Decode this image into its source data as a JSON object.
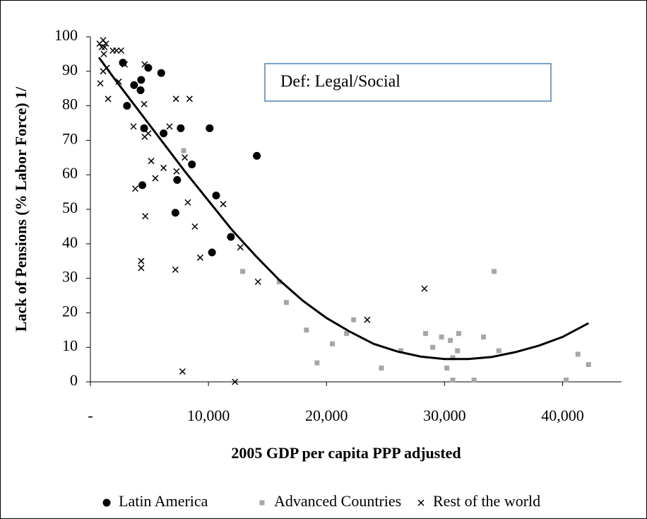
{
  "chart_data": {
    "type": "scatter",
    "annotation": "Def: Legal/Social",
    "x_label": "2005 GDP per capita PPP adjusted",
    "y_label": "Lack of Pensions (% Labor Force) 1/",
    "xlim": [
      0,
      45000
    ],
    "ylim": [
      0,
      100
    ],
    "xticks": [
      {
        "value": 0,
        "label": "-"
      },
      {
        "value": 10000,
        "label": "10,000"
      },
      {
        "value": 20000,
        "label": "20,000"
      },
      {
        "value": 30000,
        "label": "30,000"
      },
      {
        "value": 40000,
        "label": "40,000"
      }
    ],
    "yticks": [
      0,
      10,
      20,
      30,
      40,
      50,
      60,
      70,
      80,
      90,
      100
    ],
    "legend": "bottom",
    "series": [
      {
        "name": "Latin America",
        "color": "#000000",
        "marker": "circle",
        "x": [
          2750,
          3700,
          4250,
          4300,
          4900,
          6000,
          3100,
          4550,
          6200,
          7650,
          10100,
          14100,
          4400,
          7350,
          8600,
          7200,
          10650,
          10300,
          11900
        ],
        "values": [
          92.5,
          86,
          84.5,
          87.5,
          91,
          89.5,
          80,
          73.5,
          72,
          73.5,
          73.5,
          65.5,
          57,
          58.5,
          63,
          49,
          54,
          37.5,
          42
        ]
      },
      {
        "name": "Advanced Countries",
        "color": "#a6a6a6",
        "marker": "square",
        "x": [
          7900,
          12900,
          16000,
          16600,
          18300,
          19200,
          20500,
          21700,
          22300,
          24650,
          26300,
          28400,
          29000,
          29750,
          30200,
          30500,
          30700,
          30700,
          31100,
          31200,
          32500,
          33300,
          34200,
          34600,
          40300,
          41300,
          42200
        ],
        "values": [
          67,
          32,
          29,
          23,
          15,
          5.5,
          11,
          14,
          18,
          4,
          9,
          14,
          10,
          13,
          4,
          12,
          0.5,
          7,
          9,
          14,
          0.5,
          13,
          32,
          9,
          0.5,
          8,
          5
        ]
      },
      {
        "name": "Rest of the world",
        "color": "#000000",
        "marker": "cross",
        "x": [
          780,
          960,
          1080,
          1200,
          1320,
          840,
          1080,
          1380,
          1500,
          1900,
          2200,
          2400,
          2600,
          2900,
          1140,
          3650,
          3800,
          4550,
          4600,
          4600,
          4900,
          5150,
          5500,
          6200,
          6700,
          7250,
          7300,
          7200,
          4300,
          4300,
          4650,
          7800,
          8000,
          8250,
          8400,
          8850,
          9300,
          11250,
          12250,
          12700,
          14200,
          23450,
          28300
        ],
        "values": [
          98,
          97,
          99,
          97,
          98,
          86.5,
          90,
          91,
          82,
          96,
          96,
          87,
          96,
          92,
          95,
          74,
          56,
          80.5,
          71,
          92,
          72,
          64,
          59,
          62,
          74,
          82,
          61,
          32.5,
          35,
          33,
          48,
          3,
          65,
          52,
          82,
          45,
          36,
          51.5,
          0,
          39,
          29,
          18,
          27
        ]
      }
    ],
    "trend": {
      "color": "#000000",
      "x": [
        720,
        2000,
        4000,
        6000,
        8000,
        10000,
        12000,
        14000,
        16000,
        18000,
        20000,
        22000,
        24000,
        26000,
        28000,
        30000,
        32000,
        34000,
        36000,
        38000,
        40000,
        42200
      ],
      "values": [
        94,
        88,
        79,
        70,
        61,
        52.5,
        44,
        36.5,
        29.5,
        23.5,
        18.5,
        14.5,
        11,
        8.8,
        7.3,
        6.6,
        6.6,
        7.2,
        8.6,
        10.5,
        13,
        17
      ]
    }
  }
}
